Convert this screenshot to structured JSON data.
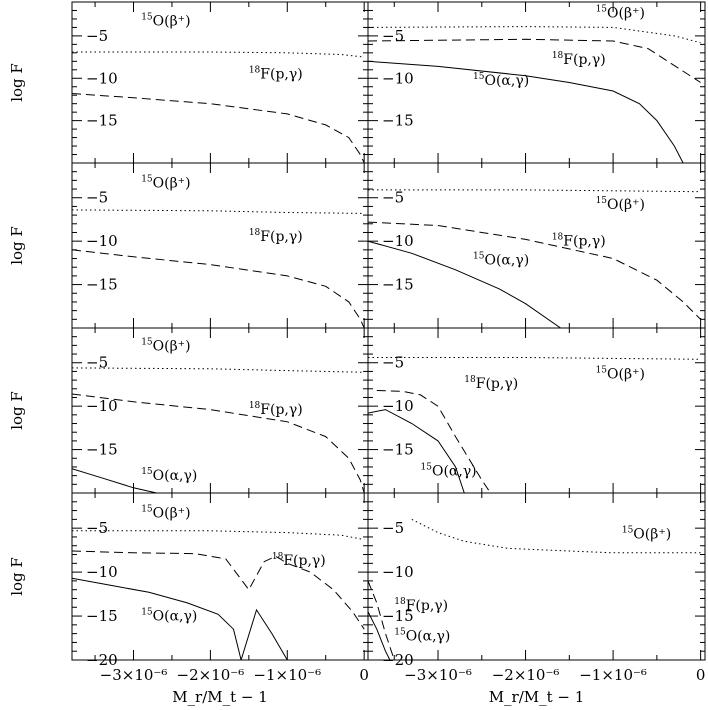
{
  "chart_data": {
    "type": "line",
    "layout": "4 rows x 2 columns of panels sharing axes",
    "ylabel": "log F",
    "xlabel": "M_r/M_t − 1",
    "xlim": [
      -3.8e-06,
      5e-08
    ],
    "x_ticks": [
      {
        "value": -3e-06,
        "label": "−3×10⁻⁶"
      },
      {
        "value": -2e-06,
        "label": "−2×10⁻⁶"
      },
      {
        "value": -1e-06,
        "label": "−1×10⁻⁶"
      },
      {
        "value": 0,
        "label": "0"
      }
    ],
    "y_ticks_top_rows": [
      "−5",
      "−10",
      "−15"
    ],
    "y_ticks_bottom_row": [
      "−5",
      "−10",
      "−15",
      "−20"
    ],
    "line_styles": {
      "15O(beta+)": "dotted",
      "18F(p,gamma)": "dashed",
      "15O(alpha,gamma)": "solid"
    },
    "panels": [
      {
        "row": 0,
        "col": 0,
        "ylim": [
          -20,
          -1
        ],
        "series": [
          {
            "name": "15O(β+)",
            "style": "dotted",
            "x": [
              -3.8e-06,
              -2e-06,
              -1e-06,
              -3e-07,
              0
            ],
            "y": [
              -6.9,
              -6.9,
              -7.0,
              -7.2,
              -7.5
            ]
          },
          {
            "name": "18F(p,γ)",
            "style": "dashed",
            "x": [
              -3.8e-06,
              -3e-06,
              -2e-06,
              -1e-06,
              -5e-07,
              -2e-07,
              -5e-08,
              0
            ],
            "y": [
              -11.8,
              -12.3,
              -13.0,
              -14.2,
              -15.5,
              -17.0,
              -19.0,
              -20.0
            ]
          }
        ],
        "labels": [
          {
            "text": "O(β⁺)",
            "mass": "15",
            "at": [
              -2.9e-06,
              -3.8
            ]
          },
          {
            "text": "F(p,γ)",
            "mass": "18",
            "at": [
              -1.5e-06,
              -10.0
            ]
          }
        ]
      },
      {
        "row": 0,
        "col": 1,
        "ylim": [
          -20,
          -1
        ],
        "series": [
          {
            "name": "15O(β+)",
            "style": "dotted",
            "x": [
              -3.8e-06,
              -2e-06,
              -1e-06,
              -3e-07,
              0
            ],
            "y": [
              -4.0,
              -3.9,
              -4.0,
              -5.0,
              -5.8
            ]
          },
          {
            "name": "18F(p,γ)",
            "style": "dashed",
            "x": [
              -3.8e-06,
              -2e-06,
              -1e-06,
              -6e-07,
              -3e-07,
              0
            ],
            "y": [
              -5.6,
              -5.4,
              -5.6,
              -6.5,
              -8.5,
              -10.5
            ]
          },
          {
            "name": "15O(α,γ)",
            "style": "solid",
            "x": [
              -3.8e-06,
              -3e-06,
              -2e-06,
              -1.5e-06,
              -1e-06,
              -7e-07,
              -5e-07,
              -3e-07,
              -2e-07
            ],
            "y": [
              -8.0,
              -8.6,
              -9.7,
              -10.5,
              -11.5,
              -13.0,
              -15.0,
              -18.0,
              -20.0
            ]
          }
        ],
        "labels": [
          {
            "text": "O(β⁺)",
            "mass": "15",
            "at": [
              -1.2e-06,
              -2.8
            ]
          },
          {
            "text": "F(p,γ)",
            "mass": "18",
            "at": [
              -1.7e-06,
              -8.3
            ]
          },
          {
            "text": "O(α,γ)",
            "mass": "15",
            "at": [
              -2.6e-06,
              -10.8
            ]
          }
        ]
      },
      {
        "row": 1,
        "col": 0,
        "ylim": [
          -20,
          -1
        ],
        "series": [
          {
            "name": "15O(β+)",
            "style": "dotted",
            "x": [
              -3.8e-06,
              -2e-06,
              -1e-06,
              0
            ],
            "y": [
              -6.4,
              -6.5,
              -6.7,
              -6.8
            ]
          },
          {
            "name": "18F(p,γ)",
            "style": "dashed",
            "x": [
              -3.8e-06,
              -3e-06,
              -2e-06,
              -1e-06,
              -5e-07,
              -2e-07,
              -5e-08,
              0
            ],
            "y": [
              -11.0,
              -11.8,
              -12.7,
              -14.0,
              -15.2,
              -17.0,
              -19.0,
              -20.0
            ]
          }
        ],
        "labels": [
          {
            "text": "O(β⁺)",
            "mass": "15",
            "at": [
              -2.9e-06,
              -3.8
            ]
          },
          {
            "text": "F(p,γ)",
            "mass": "18",
            "at": [
              -1.5e-06,
              -10.0
            ]
          }
        ]
      },
      {
        "row": 1,
        "col": 1,
        "ylim": [
          -20,
          -1
        ],
        "series": [
          {
            "name": "15O(β+)",
            "style": "dotted",
            "x": [
              -3.8e-06,
              -2e-06,
              -1e-06,
              0
            ],
            "y": [
              -4.1,
              -4.1,
              -4.2,
              -4.3
            ]
          },
          {
            "name": "18F(p,γ)",
            "style": "dashed",
            "x": [
              -3.8e-06,
              -3e-06,
              -2e-06,
              -1e-06,
              -5e-07,
              -2e-07,
              0
            ],
            "y": [
              -7.8,
              -8.2,
              -9.8,
              -12.0,
              -14.5,
              -17.0,
              -19.0
            ]
          },
          {
            "name": "15O(α,γ)",
            "style": "solid",
            "x": [
              -3.8e-06,
              -3.3e-06,
              -2.8e-06,
              -2.3e-06,
              -2e-06,
              -1.6e-06
            ],
            "y": [
              -10.0,
              -11.4,
              -13.3,
              -15.5,
              -17.2,
              -20.0
            ]
          }
        ],
        "labels": [
          {
            "text": "O(β⁺)",
            "mass": "15",
            "at": [
              -1.2e-06,
              -6.3
            ]
          },
          {
            "text": "F(p,γ)",
            "mass": "18",
            "at": [
              -1.7e-06,
              -10.5
            ]
          },
          {
            "text": "O(α,γ)",
            "mass": "15",
            "at": [
              -2.6e-06,
              -12.7
            ]
          }
        ]
      },
      {
        "row": 2,
        "col": 0,
        "ylim": [
          -20,
          -1
        ],
        "series": [
          {
            "name": "15O(β+)",
            "style": "dotted",
            "x": [
              -3.8e-06,
              -2e-06,
              -1e-06,
              0
            ],
            "y": [
              -5.6,
              -5.7,
              -5.9,
              -6.1
            ]
          },
          {
            "name": "18F(p,γ)",
            "style": "dashed",
            "x": [
              -3.8e-06,
              -3e-06,
              -2e-06,
              -1e-06,
              -5e-07,
              -2e-07,
              -5e-08,
              0
            ],
            "y": [
              -8.6,
              -9.5,
              -10.4,
              -11.8,
              -13.5,
              -16.0,
              -18.5,
              -20.0
            ]
          },
          {
            "name": "15O(α,γ)",
            "style": "solid",
            "x": [
              -3.8e-06,
              -3.4e-06,
              -3e-06,
              -2.7e-06
            ],
            "y": [
              -17.2,
              -18.3,
              -19.4,
              -20.0
            ]
          }
        ],
        "labels": [
          {
            "text": "O(β⁺)",
            "mass": "15",
            "at": [
              -2.9e-06,
              -3.6
            ]
          },
          {
            "text": "F(p,γ)",
            "mass": "18",
            "at": [
              -1.5e-06,
              -10.9
            ]
          },
          {
            "text": "O(α,γ)",
            "mass": "15",
            "at": [
              -2.9e-06,
              -18.5
            ]
          }
        ]
      },
      {
        "row": 2,
        "col": 1,
        "ylim": [
          -20,
          -1
        ],
        "series": [
          {
            "name": "15O(β+)",
            "style": "dotted",
            "x": [
              -3.8e-06,
              -2e-06,
              -1e-06,
              0
            ],
            "y": [
              -4.4,
              -4.4,
              -4.5,
              -4.6
            ]
          },
          {
            "name": "18F(p,γ)",
            "style": "dashed",
            "x": [
              -3.7e-06,
              -3.4e-06,
              -3.2e-06,
              -3e-06,
              -2.8e-06,
              -2.5e-06,
              -2.4e-06
            ],
            "y": [
              -8.2,
              -8.3,
              -8.7,
              -10.0,
              -13.5,
              -18.5,
              -20.0
            ]
          },
          {
            "name": "15O(α,γ)",
            "style": "solid",
            "x": [
              -3.8e-06,
              -3.6e-06,
              -3.3e-06,
              -3e-06,
              -2.8e-06,
              -2.7e-06
            ],
            "y": [
              -10.8,
              -10.4,
              -12.0,
              -14.0,
              -17.0,
              -20.0
            ]
          }
        ],
        "labels": [
          {
            "text": "O(β⁺)",
            "mass": "15",
            "at": [
              -1.2e-06,
              -6.8
            ]
          },
          {
            "text": "F(p,γ)",
            "mass": "18",
            "at": [
              -2.7e-06,
              -7.9
            ]
          },
          {
            "text": "O(α,γ)",
            "mass": "15",
            "at": [
              -3.2e-06,
              -18.0
            ]
          }
        ]
      },
      {
        "row": 3,
        "col": 0,
        "ylim": [
          -20,
          -1
        ],
        "series": [
          {
            "name": "15O(β+)",
            "style": "dotted",
            "x": [
              -3.8e-06,
              -2e-06,
              -1e-06,
              -3e-07,
              0
            ],
            "y": [
              -5.3,
              -5.3,
              -5.5,
              -5.8,
              -6.3
            ]
          },
          {
            "name": "18F(p,γ)",
            "style": "dashed",
            "x": [
              -3.8e-06,
              -3e-06,
              -2.2e-06,
              -1.8e-06,
              -1.5e-06,
              -1.3e-06,
              -1.15e-06,
              -1e-06,
              -7e-07,
              -4e-07,
              -1.5e-07,
              0
            ],
            "y": [
              -7.6,
              -7.8,
              -7.9,
              -8.5,
              -12.0,
              -8.8,
              -8.2,
              -9.0,
              -10.0,
              -12.0,
              -14.5,
              -16.5
            ]
          },
          {
            "name": "15O(α,γ)",
            "style": "solid",
            "x": [
              -3.8e-06,
              -3.3e-06,
              -2.8e-06,
              -2.3e-06,
              -1.9e-06,
              -1.7e-06,
              -1.6e-06,
              -1.4e-06,
              -1.2e-06,
              -1e-06
            ],
            "y": [
              -10.7,
              -11.5,
              -12.3,
              -13.5,
              -14.8,
              -16.5,
              -20.0,
              -14.3,
              -17.0,
              -20.0
            ]
          }
        ],
        "labels": [
          {
            "text": "O(β⁺)",
            "mass": "15",
            "at": [
              -2.9e-06,
              -3.8
            ]
          },
          {
            "text": "F(p,γ)",
            "mass": "18",
            "at": [
              -1.2e-06,
              -9.2
            ]
          },
          {
            "text": "O(α,γ)",
            "mass": "15",
            "at": [
              -2.9e-06,
              -15.5
            ]
          }
        ]
      },
      {
        "row": 3,
        "col": 1,
        "ylim": [
          -20,
          -1
        ],
        "series": [
          {
            "name": "15O(β+)",
            "style": "dotted",
            "x": [
              -3.3e-06,
              -3e-06,
              -2.7e-06,
              -2.2e-06,
              -1.5e-06,
              -1e-06,
              0
            ],
            "y": [
              -4.0,
              -5.5,
              -6.5,
              -7.3,
              -7.6,
              -7.8,
              -7.8
            ]
          },
          {
            "name": "18F(p,γ)",
            "style": "dashed",
            "x": [
              -3.8e-06,
              -3.7e-06,
              -3.6e-06,
              -3.5e-06
            ],
            "y": [
              -11.0,
              -13.5,
              -17.0,
              -20.0
            ]
          },
          {
            "name": "15O(α,γ)",
            "style": "solid",
            "x": [
              -3.8e-06,
              -3.7e-06,
              -3.6e-06,
              -3.55e-06
            ],
            "y": [
              -14.5,
              -16.5,
              -19.0,
              -20.0
            ]
          }
        ],
        "labels": [
          {
            "text": "O(β⁺)",
            "mass": "15",
            "at": [
              -9e-07,
              -6.2
            ]
          },
          {
            "text": "F(p,γ)",
            "mass": "18",
            "at": [
              -3.5e-06,
              -14.3
            ]
          },
          {
            "text": "O(α,γ)",
            "mass": "15",
            "at": [
              -3.5e-06,
              -17.8
            ]
          }
        ]
      }
    ]
  }
}
